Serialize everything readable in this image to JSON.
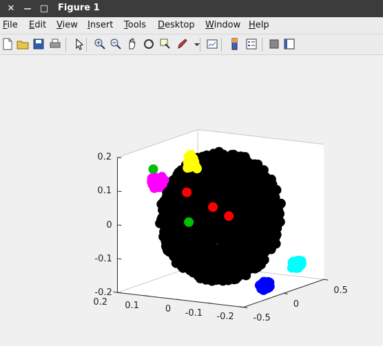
{
  "window": {
    "title": "Figure 1",
    "close_glyph": "✕",
    "minimize_glyph": "—",
    "maximize_glyph": "□"
  },
  "menu": {
    "items": [
      {
        "label": "File",
        "underline": "F",
        "rest": "ile"
      },
      {
        "label": "Edit",
        "underline": "E",
        "rest": "dit"
      },
      {
        "label": "View",
        "underline": "V",
        "rest": "iew"
      },
      {
        "label": "Insert",
        "underline": "I",
        "rest": "nsert"
      },
      {
        "label": "Tools",
        "underline": "T",
        "rest": "ools"
      },
      {
        "label": "Desktop",
        "underline": "D",
        "rest": "esktop"
      },
      {
        "label": "Window",
        "underline": "W",
        "rest": "indow"
      },
      {
        "label": "Help",
        "underline": "H",
        "rest": "elp"
      }
    ]
  },
  "toolbar": {
    "tools": [
      "new-figure-icon",
      "open-file-icon",
      "save-icon",
      "print-icon",
      "pointer-icon",
      "zoom-in-icon",
      "zoom-out-icon",
      "pan-icon",
      "rotate-3d-icon",
      "data-cursor-icon",
      "brush-icon",
      "dropdown-arrow-icon",
      "link-plot-icon",
      "colorbar-icon",
      "legend-icon",
      "hide-plot-tools-icon",
      "show-plot-tools-icon"
    ]
  },
  "colors": {
    "titlebar": "#3c3c3c",
    "axes_bg": "#ffffff",
    "points_main": "#000000",
    "cluster_magenta": "#ff00ff",
    "cluster_yellow": "#ffff00",
    "cluster_cyan": "#00ffff",
    "cluster_blue": "#0000ff",
    "stray_red": "#ff0000",
    "stray_green": "#00c000"
  },
  "chart_data": {
    "type": "scatter",
    "title": "",
    "xlabel": "",
    "ylabel": "",
    "zlabel": "",
    "xlim": [
      -0.5,
      0.5
    ],
    "ylim": [
      -0.2,
      0.2
    ],
    "zlim": [
      -0.2,
      0.2
    ],
    "x_ticks": [
      "-0.5",
      "0",
      "0.5"
    ],
    "y_ticks": [
      "0.2",
      "0.1",
      "0",
      "-0.1",
      "-0.2"
    ],
    "z_ticks": [
      "0.2",
      "0.1",
      "0",
      "-0.1",
      "-0.2"
    ],
    "grid": false,
    "series": [
      {
        "color": "#000000",
        "points": []
      },
      {
        "color": "#ff00ff",
        "points": []
      },
      {
        "color": "#ffff00",
        "points": []
      },
      {
        "color": "#00ffff",
        "points": []
      },
      {
        "color": "#0000ff",
        "points": []
      }
    ]
  }
}
